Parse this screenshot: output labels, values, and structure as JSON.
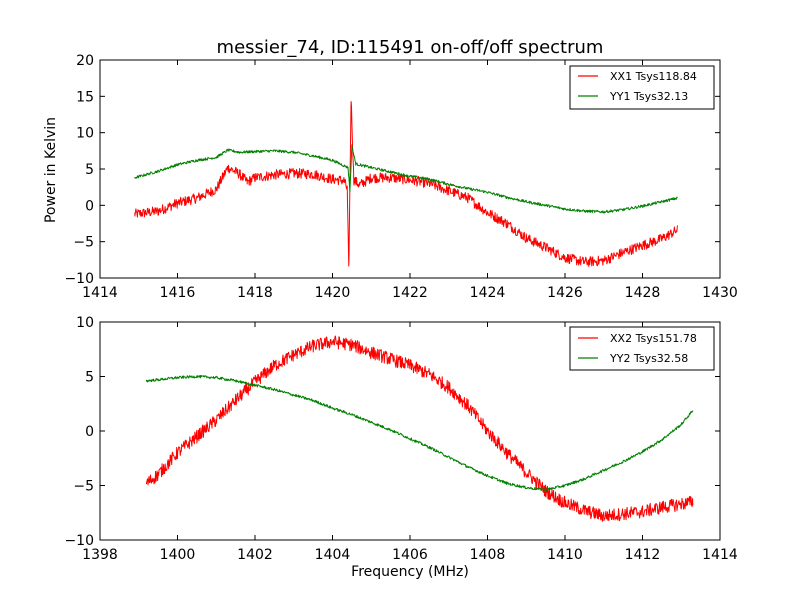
{
  "chart_data": [
    {
      "type": "line",
      "title": "messier_74, ID:115491 on-off/off spectrum",
      "xlabel": "",
      "ylabel": "Power in Kelvin",
      "xlim": [
        1414,
        1430
      ],
      "ylim": [
        -10,
        20
      ],
      "xticks": [
        1414,
        1416,
        1418,
        1420,
        1422,
        1424,
        1426,
        1428,
        1430
      ],
      "yticks": [
        -10,
        -5,
        0,
        5,
        10,
        15,
        20
      ],
      "legend_position": "top-right",
      "grid": false,
      "series": [
        {
          "name": "XX1 Tsys118.84",
          "color": "#ff0000",
          "noise": 0.7,
          "points": [
            [
              1414.9,
              -1.2
            ],
            [
              1415.5,
              -0.8
            ],
            [
              1416.0,
              0.3
            ],
            [
              1416.5,
              1.0
            ],
            [
              1417.0,
              2.2
            ],
            [
              1417.3,
              5.2
            ],
            [
              1417.6,
              4.3
            ],
            [
              1417.8,
              3.2
            ],
            [
              1418.0,
              3.8
            ],
            [
              1418.5,
              4.2
            ],
            [
              1419.0,
              4.4
            ],
            [
              1419.5,
              4.3
            ],
            [
              1420.0,
              3.6
            ],
            [
              1420.3,
              3.4
            ],
            [
              1420.38,
              2.2
            ],
            [
              1420.42,
              -9.0
            ],
            [
              1420.48,
              14.8
            ],
            [
              1420.55,
              3.5
            ],
            [
              1420.7,
              2.8
            ],
            [
              1421.0,
              3.8
            ],
            [
              1421.5,
              3.8
            ],
            [
              1422.0,
              3.5
            ],
            [
              1422.5,
              3.0
            ],
            [
              1423.0,
              2.0
            ],
            [
              1423.5,
              1.0
            ],
            [
              1424.0,
              -1.0
            ],
            [
              1424.5,
              -2.5
            ],
            [
              1425.0,
              -4.5
            ],
            [
              1425.5,
              -5.8
            ],
            [
              1426.0,
              -7.2
            ],
            [
              1426.5,
              -7.8
            ],
            [
              1427.0,
              -7.6
            ],
            [
              1427.5,
              -6.5
            ],
            [
              1428.0,
              -5.5
            ],
            [
              1428.5,
              -4.6
            ],
            [
              1428.9,
              -3.4
            ]
          ]
        },
        {
          "name": "YY1 Tsys32.13",
          "color": "#008000",
          "noise": 0.18,
          "points": [
            [
              1414.9,
              3.8
            ],
            [
              1415.5,
              4.7
            ],
            [
              1416.0,
              5.6
            ],
            [
              1416.5,
              6.2
            ],
            [
              1417.0,
              6.6
            ],
            [
              1417.3,
              7.6
            ],
            [
              1417.6,
              7.3
            ],
            [
              1418.0,
              7.4
            ],
            [
              1418.5,
              7.5
            ],
            [
              1419.0,
              7.3
            ],
            [
              1419.5,
              6.8
            ],
            [
              1420.0,
              6.2
            ],
            [
              1420.4,
              5.2
            ],
            [
              1420.45,
              2.0
            ],
            [
              1420.5,
              8.2
            ],
            [
              1420.6,
              5.7
            ],
            [
              1421.0,
              5.2
            ],
            [
              1421.5,
              4.6
            ],
            [
              1422.0,
              4.0
            ],
            [
              1422.5,
              3.6
            ],
            [
              1423.0,
              2.9
            ],
            [
              1423.5,
              2.3
            ],
            [
              1424.0,
              1.8
            ],
            [
              1424.5,
              1.1
            ],
            [
              1425.0,
              0.5
            ],
            [
              1425.5,
              0.0
            ],
            [
              1426.0,
              -0.5
            ],
            [
              1426.5,
              -0.8
            ],
            [
              1427.0,
              -0.9
            ],
            [
              1427.5,
              -0.6
            ],
            [
              1428.0,
              -0.1
            ],
            [
              1428.5,
              0.5
            ],
            [
              1428.9,
              1.0
            ]
          ]
        }
      ]
    },
    {
      "type": "line",
      "title": "",
      "xlabel": "Frequency (MHz)",
      "ylabel": "",
      "xlim": [
        1398,
        1414
      ],
      "ylim": [
        -10,
        10
      ],
      "xticks": [
        1398,
        1400,
        1402,
        1404,
        1406,
        1408,
        1410,
        1412,
        1414
      ],
      "yticks": [
        -10,
        -5,
        0,
        5,
        10
      ],
      "legend_position": "top-right",
      "grid": false,
      "series": [
        {
          "name": "XX2 Tsys151.78",
          "color": "#ff0000",
          "noise": 0.6,
          "points": [
            [
              1399.2,
              -4.8
            ],
            [
              1399.5,
              -4.0
            ],
            [
              1400.0,
              -2.0
            ],
            [
              1400.5,
              -0.5
            ],
            [
              1401.0,
              1.0
            ],
            [
              1401.5,
              2.8
            ],
            [
              1402.0,
              4.5
            ],
            [
              1402.5,
              6.0
            ],
            [
              1403.0,
              7.0
            ],
            [
              1403.5,
              7.8
            ],
            [
              1404.0,
              8.2
            ],
            [
              1404.5,
              7.9
            ],
            [
              1405.0,
              7.2
            ],
            [
              1405.5,
              6.6
            ],
            [
              1406.0,
              6.0
            ],
            [
              1406.5,
              5.2
            ],
            [
              1407.0,
              4.0
            ],
            [
              1407.5,
              2.3
            ],
            [
              1408.0,
              0.0
            ],
            [
              1408.5,
              -2.0
            ],
            [
              1409.0,
              -3.8
            ],
            [
              1409.5,
              -5.5
            ],
            [
              1410.0,
              -6.6
            ],
            [
              1410.5,
              -7.3
            ],
            [
              1411.0,
              -7.8
            ],
            [
              1411.5,
              -7.6
            ],
            [
              1412.0,
              -7.4
            ],
            [
              1412.5,
              -7.0
            ],
            [
              1413.0,
              -6.7
            ],
            [
              1413.3,
              -6.5
            ]
          ]
        },
        {
          "name": "YY2 Tsys32.58",
          "color": "#008000",
          "noise": 0.12,
          "points": [
            [
              1399.2,
              4.6
            ],
            [
              1399.5,
              4.7
            ],
            [
              1400.0,
              4.9
            ],
            [
              1400.5,
              5.0
            ],
            [
              1401.0,
              4.9
            ],
            [
              1401.5,
              4.6
            ],
            [
              1402.0,
              4.2
            ],
            [
              1402.5,
              3.8
            ],
            [
              1403.0,
              3.3
            ],
            [
              1403.5,
              2.8
            ],
            [
              1404.0,
              2.1
            ],
            [
              1404.5,
              1.5
            ],
            [
              1405.0,
              0.8
            ],
            [
              1405.5,
              0.1
            ],
            [
              1406.0,
              -0.7
            ],
            [
              1406.5,
              -1.5
            ],
            [
              1407.0,
              -2.4
            ],
            [
              1407.5,
              -3.3
            ],
            [
              1408.0,
              -4.1
            ],
            [
              1408.5,
              -4.8
            ],
            [
              1409.0,
              -5.2
            ],
            [
              1409.5,
              -5.4
            ],
            [
              1410.0,
              -5.0
            ],
            [
              1410.5,
              -4.4
            ],
            [
              1411.0,
              -3.6
            ],
            [
              1411.5,
              -2.8
            ],
            [
              1412.0,
              -1.9
            ],
            [
              1412.5,
              -0.8
            ],
            [
              1413.0,
              0.6
            ],
            [
              1413.3,
              1.9
            ]
          ]
        }
      ]
    }
  ]
}
